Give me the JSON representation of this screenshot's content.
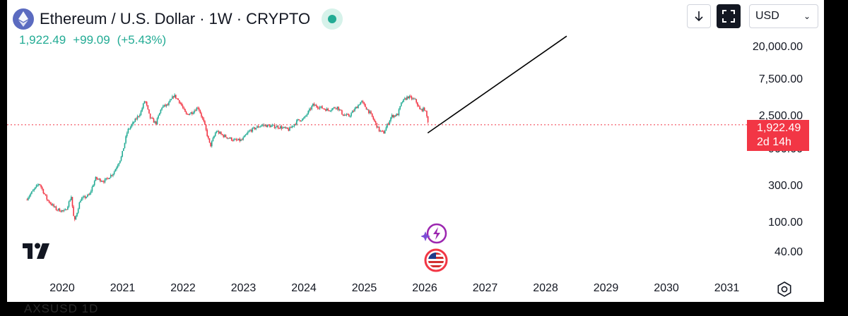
{
  "header": {
    "title": "Ethereum / U.S. Dollar · 1W · CRYPTO",
    "price": "1,922.49",
    "change": "+99.09",
    "change_pct": "(+5.43%)"
  },
  "toolbar": {
    "currency": "USD"
  },
  "price_tag": {
    "value": "1,922.49",
    "countdown": "2d 14h"
  },
  "bottom_strip_text": "AXSUSD  1D",
  "colors": {
    "up": "#22ab94",
    "down": "#f23645",
    "text": "#131722",
    "drawing": "#000000"
  },
  "chart_data": {
    "type": "candlestick",
    "scale": "log",
    "y_ticks": [
      "20,000.00",
      "7,500.00",
      "2,500.00",
      "900.00",
      "300.00",
      "100.00",
      "40.00"
    ],
    "x_ticks": [
      "2020",
      "2021",
      "2022",
      "2023",
      "2024",
      "2025",
      "2026",
      "2027",
      "2028",
      "2029",
      "2030",
      "2031"
    ],
    "x_range": [
      2019.35,
      2031.4
    ],
    "last_price": 1922.49,
    "close_series": [
      [
        2019.4,
        200
      ],
      [
        2019.55,
        280
      ],
      [
        2019.62,
        330
      ],
      [
        2019.75,
        200
      ],
      [
        2019.9,
        150
      ],
      [
        2020.05,
        140
      ],
      [
        2020.15,
        220
      ],
      [
        2020.2,
        100
      ],
      [
        2020.3,
        200
      ],
      [
        2020.45,
        230
      ],
      [
        2020.55,
        380
      ],
      [
        2020.7,
        350
      ],
      [
        2020.85,
        450
      ],
      [
        2020.98,
        730
      ],
      [
        2021.08,
        1600
      ],
      [
        2021.15,
        1900
      ],
      [
        2021.3,
        2800
      ],
      [
        2021.37,
        4100
      ],
      [
        2021.45,
        2400
      ],
      [
        2021.55,
        2000
      ],
      [
        2021.65,
        3300
      ],
      [
        2021.75,
        3500
      ],
      [
        2021.85,
        4700
      ],
      [
        2021.95,
        3800
      ],
      [
        2022.05,
        2600
      ],
      [
        2022.15,
        2800
      ],
      [
        2022.25,
        3300
      ],
      [
        2022.35,
        2000
      ],
      [
        2022.45,
        1000
      ],
      [
        2022.55,
        1600
      ],
      [
        2022.65,
        1400
      ],
      [
        2022.75,
        1300
      ],
      [
        2022.85,
        1200
      ],
      [
        2022.97,
        1200
      ],
      [
        2023.1,
        1600
      ],
      [
        2023.3,
        1900
      ],
      [
        2023.45,
        1850
      ],
      [
        2023.6,
        1800
      ],
      [
        2023.75,
        1650
      ],
      [
        2023.9,
        2200
      ],
      [
        2024.0,
        2300
      ],
      [
        2024.15,
        3500
      ],
      [
        2024.25,
        3300
      ],
      [
        2024.4,
        3000
      ],
      [
        2024.55,
        3300
      ],
      [
        2024.65,
        2600
      ],
      [
        2024.75,
        2500
      ],
      [
        2024.95,
        3900
      ],
      [
        2025.1,
        2700
      ],
      [
        2025.25,
        1600
      ],
      [
        2025.32,
        1500
      ],
      [
        2025.45,
        2500
      ],
      [
        2025.55,
        2600
      ],
      [
        2025.62,
        3800
      ],
      [
        2025.72,
        4500
      ],
      [
        2025.85,
        4000
      ],
      [
        2025.92,
        3000
      ],
      [
        2026.0,
        3100
      ],
      [
        2026.07,
        1922.49
      ]
    ],
    "trend_line": {
      "from": [
        2026.05,
        1500
      ],
      "to": [
        2028.35,
        28000
      ]
    },
    "events": [
      "ai-event",
      "us-flag-event"
    ]
  }
}
